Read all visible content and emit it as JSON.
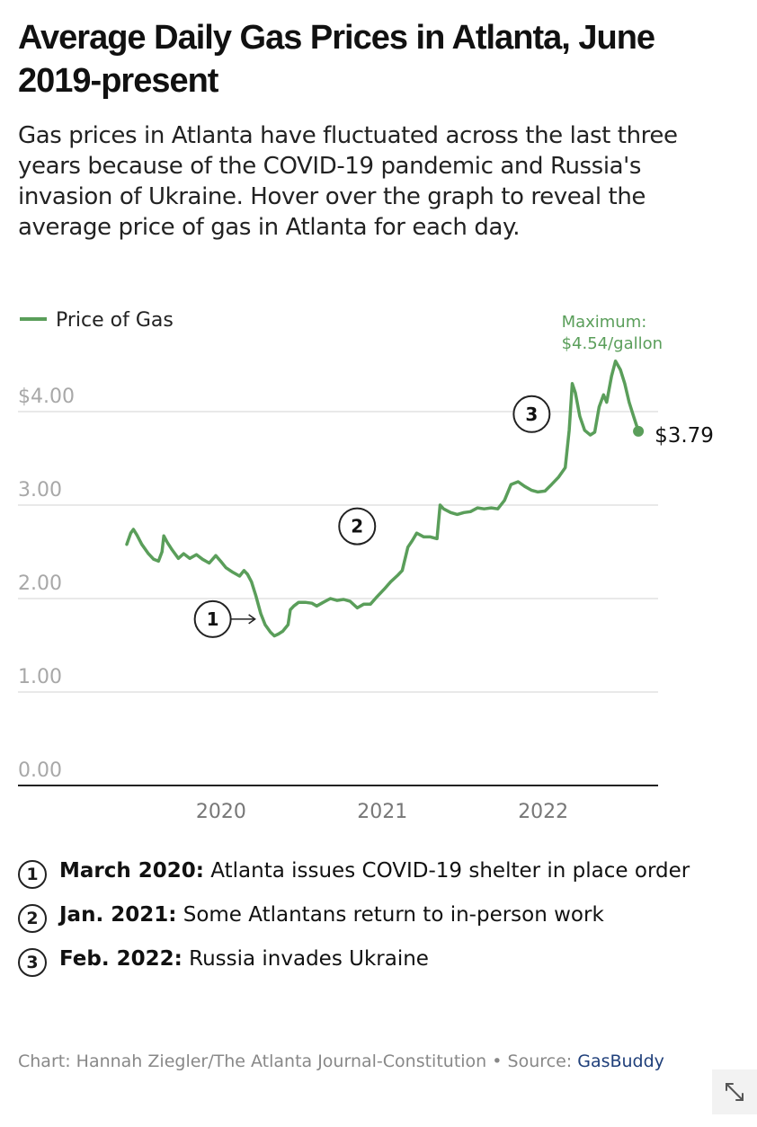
{
  "title": "Average Daily Gas Prices in Atlanta, June 2019-present",
  "subtitle": "Gas prices in Atlanta have fluctuated across the last three years because of the COVID-19 pandemic and Russia's invasion of Ukraine. Hover over the graph to reveal the average price of gas in Atlanta for each day.",
  "chart_data": {
    "type": "line",
    "legend": {
      "label": "Price of Gas",
      "placement": "top-left"
    },
    "y_ticks": [
      "$4.00",
      "3.00",
      "2.00",
      "1.00",
      "0.00"
    ],
    "y_tick_values": [
      4,
      3,
      2,
      1,
      0
    ],
    "x_ticks": [
      "2020",
      "2021",
      "2022"
    ],
    "x_tick_dates": [
      "2020-01-01",
      "2021-01-01",
      "2022-01-01"
    ],
    "ylim": [
      0,
      4.6
    ],
    "xlim": [
      "2019-04-15",
      "2022-10-01"
    ],
    "grid": true,
    "color": "#5a9e5a",
    "series": [
      {
        "name": "Price of Gas",
        "points": [
          [
            "2019-06-01",
            2.58
          ],
          [
            "2019-06-10",
            2.7
          ],
          [
            "2019-06-16",
            2.74
          ],
          [
            "2019-06-24",
            2.68
          ],
          [
            "2019-07-05",
            2.58
          ],
          [
            "2019-07-20",
            2.48
          ],
          [
            "2019-08-01",
            2.42
          ],
          [
            "2019-08-12",
            2.4
          ],
          [
            "2019-08-20",
            2.5
          ],
          [
            "2019-08-24",
            2.67
          ],
          [
            "2019-09-01",
            2.6
          ],
          [
            "2019-09-12",
            2.52
          ],
          [
            "2019-09-26",
            2.43
          ],
          [
            "2019-10-08",
            2.48
          ],
          [
            "2019-10-22",
            2.43
          ],
          [
            "2019-11-06",
            2.47
          ],
          [
            "2019-11-20",
            2.42
          ],
          [
            "2019-12-05",
            2.38
          ],
          [
            "2019-12-20",
            2.46
          ],
          [
            "2019-12-31",
            2.4
          ],
          [
            "2020-01-12",
            2.33
          ],
          [
            "2020-01-28",
            2.28
          ],
          [
            "2020-02-12",
            2.24
          ],
          [
            "2020-02-22",
            2.3
          ],
          [
            "2020-03-01",
            2.26
          ],
          [
            "2020-03-10",
            2.18
          ],
          [
            "2020-03-20",
            2.03
          ],
          [
            "2020-03-31",
            1.84
          ],
          [
            "2020-04-10",
            1.72
          ],
          [
            "2020-04-22",
            1.64
          ],
          [
            "2020-05-01",
            1.6
          ],
          [
            "2020-05-10",
            1.62
          ],
          [
            "2020-05-20",
            1.65
          ],
          [
            "2020-06-01",
            1.72
          ],
          [
            "2020-06-06",
            1.88
          ],
          [
            "2020-06-14",
            1.92
          ],
          [
            "2020-06-25",
            1.96
          ],
          [
            "2020-07-10",
            1.96
          ],
          [
            "2020-07-25",
            1.95
          ],
          [
            "2020-08-05",
            1.92
          ],
          [
            "2020-08-20",
            1.96
          ],
          [
            "2020-09-05",
            2.0
          ],
          [
            "2020-09-20",
            1.98
          ],
          [
            "2020-10-05",
            1.99
          ],
          [
            "2020-10-20",
            1.97
          ],
          [
            "2020-11-05",
            1.9
          ],
          [
            "2020-11-20",
            1.94
          ],
          [
            "2020-12-05",
            1.94
          ],
          [
            "2020-12-20",
            2.02
          ],
          [
            "2021-01-05",
            2.1
          ],
          [
            "2021-01-20",
            2.18
          ],
          [
            "2021-02-05",
            2.25
          ],
          [
            "2021-02-15",
            2.3
          ],
          [
            "2021-02-28",
            2.55
          ],
          [
            "2021-03-10",
            2.62
          ],
          [
            "2021-03-20",
            2.7
          ],
          [
            "2021-04-05",
            2.66
          ],
          [
            "2021-04-20",
            2.66
          ],
          [
            "2021-05-05",
            2.64
          ],
          [
            "2021-05-12",
            3.0
          ],
          [
            "2021-05-20",
            2.96
          ],
          [
            "2021-06-05",
            2.92
          ],
          [
            "2021-06-20",
            2.9
          ],
          [
            "2021-07-05",
            2.92
          ],
          [
            "2021-07-20",
            2.93
          ],
          [
            "2021-08-05",
            2.97
          ],
          [
            "2021-08-20",
            2.96
          ],
          [
            "2021-09-05",
            2.97
          ],
          [
            "2021-09-20",
            2.96
          ],
          [
            "2021-10-05",
            3.05
          ],
          [
            "2021-10-20",
            3.22
          ],
          [
            "2021-11-05",
            3.25
          ],
          [
            "2021-11-20",
            3.2
          ],
          [
            "2021-12-05",
            3.16
          ],
          [
            "2021-12-20",
            3.14
          ],
          [
            "2022-01-05",
            3.15
          ],
          [
            "2022-01-20",
            3.22
          ],
          [
            "2022-02-05",
            3.3
          ],
          [
            "2022-02-20",
            3.4
          ],
          [
            "2022-03-01",
            3.8
          ],
          [
            "2022-03-08",
            4.3
          ],
          [
            "2022-03-15",
            4.2
          ],
          [
            "2022-03-25",
            3.95
          ],
          [
            "2022-04-05",
            3.8
          ],
          [
            "2022-04-18",
            3.75
          ],
          [
            "2022-04-28",
            3.78
          ],
          [
            "2022-05-08",
            4.05
          ],
          [
            "2022-05-18",
            4.18
          ],
          [
            "2022-05-25",
            4.1
          ],
          [
            "2022-06-05",
            4.38
          ],
          [
            "2022-06-14",
            4.54
          ],
          [
            "2022-06-25",
            4.45
          ],
          [
            "2022-07-05",
            4.3
          ],
          [
            "2022-07-15",
            4.1
          ],
          [
            "2022-07-25",
            3.95
          ],
          [
            "2022-08-05",
            3.79
          ]
        ]
      }
    ],
    "annotations": {
      "maximum_label": "Maximum:",
      "maximum_value": "$4.54/gallon",
      "maximum_point": [
        "2022-06-14",
        4.54
      ],
      "last_value_label": "$3.79",
      "last_point": [
        "2022-08-05",
        3.79
      ],
      "markers": [
        {
          "number": "1",
          "date": "2020-03-20",
          "arrow": true
        },
        {
          "number": "2",
          "date": "2021-01-05"
        },
        {
          "number": "3",
          "date": "2022-02-05"
        }
      ]
    }
  },
  "notes": [
    {
      "number": "1",
      "bold": "March 2020:",
      "text": " Atlanta issues COVID-19 shelter in place order"
    },
    {
      "number": "2",
      "bold": "Jan. 2021:",
      "text": " Some Atlantans return to in-person work"
    },
    {
      "number": "3",
      "bold": "Feb. 2022:",
      "text": " Russia invades Ukraine"
    }
  ],
  "credit": {
    "text": "Chart: Hannah Ziegler/The Atlanta Journal-Constitution • Source: ",
    "source": "GasBuddy"
  },
  "expand_icon": "expand-diagonal-icon"
}
